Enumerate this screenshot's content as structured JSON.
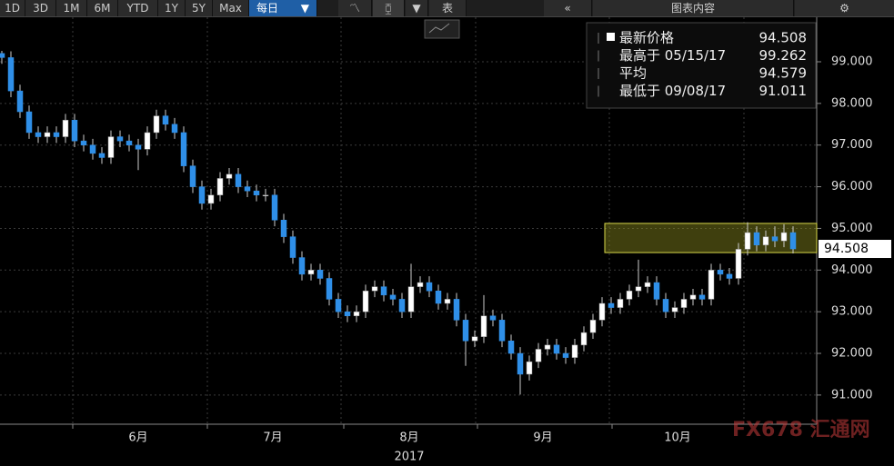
{
  "toolbar": {
    "ranges": [
      "1D",
      "3D",
      "1M",
      "6M",
      "YTD",
      "1Y",
      "5Y",
      "Max"
    ],
    "interval": "每日",
    "table": "表",
    "content": "图表内容"
  },
  "chart_data": {
    "type": "candlestick",
    "open": [
      99.2,
      99.1,
      98.3,
      97.8,
      97.3,
      97.2,
      97.3,
      97.2,
      97.6,
      97.1,
      97.0,
      96.8,
      96.7,
      97.2,
      97.1,
      97.0,
      96.9,
      97.3,
      97.7,
      97.5,
      97.3,
      96.5,
      96.0,
      95.6,
      95.8,
      96.2,
      96.3,
      96.0,
      95.9,
      95.8,
      95.8,
      95.2,
      94.8,
      94.3,
      93.9,
      94.0,
      93.8,
      93.3,
      93.0,
      92.9,
      93.0,
      93.5,
      93.6,
      93.4,
      93.3,
      93.0,
      93.6,
      93.7,
      93.5,
      93.2,
      93.3,
      92.8,
      92.3,
      92.4,
      92.9,
      92.8,
      92.3,
      92.0,
      91.5,
      91.8,
      92.1,
      92.2,
      92.0,
      91.9,
      92.2,
      92.5,
      92.8,
      93.2,
      93.1,
      93.3,
      93.5,
      93.6,
      93.7,
      93.3,
      93.0,
      93.1,
      93.3,
      93.4,
      93.3,
      94.0,
      93.9,
      93.8,
      94.5,
      94.9,
      94.6,
      94.8,
      94.7,
      94.9
    ],
    "high": [
      99.262,
      99.25,
      98.45,
      97.95,
      97.45,
      97.45,
      97.45,
      97.75,
      97.75,
      97.25,
      97.15,
      96.95,
      97.35,
      97.35,
      97.25,
      97.15,
      97.45,
      97.85,
      97.85,
      97.65,
      97.45,
      96.65,
      96.15,
      95.95,
      96.35,
      96.45,
      96.45,
      96.15,
      96.05,
      95.95,
      95.95,
      95.35,
      94.95,
      94.45,
      94.15,
      94.15,
      93.95,
      93.45,
      93.15,
      93.15,
      93.65,
      93.75,
      93.75,
      93.55,
      93.45,
      94.15,
      93.85,
      93.85,
      93.65,
      93.45,
      93.45,
      92.95,
      92.55,
      93.4,
      93.05,
      92.95,
      92.45,
      92.15,
      91.95,
      92.25,
      92.35,
      92.35,
      92.15,
      92.35,
      92.65,
      92.95,
      93.35,
      93.35,
      93.45,
      93.65,
      94.25,
      93.85,
      93.85,
      93.45,
      93.25,
      93.45,
      93.55,
      93.55,
      94.15,
      94.15,
      94.05,
      94.65,
      95.15,
      95.05,
      94.95,
      95.05,
      95.1,
      95.05
    ],
    "low": [
      98.95,
      98.15,
      97.65,
      97.15,
      97.05,
      97.05,
      97.05,
      97.05,
      96.95,
      96.85,
      96.65,
      96.55,
      96.55,
      96.95,
      96.85,
      96.4,
      96.75,
      97.15,
      97.35,
      97.15,
      96.35,
      95.85,
      95.45,
      95.45,
      95.65,
      96.05,
      95.85,
      95.75,
      95.65,
      95.65,
      95.05,
      94.65,
      94.15,
      93.75,
      93.75,
      93.65,
      93.15,
      92.85,
      92.75,
      92.75,
      92.85,
      93.35,
      93.25,
      93.15,
      92.85,
      92.85,
      93.45,
      93.35,
      93.05,
      93.05,
      92.65,
      91.7,
      92.15,
      92.25,
      92.65,
      92.15,
      91.85,
      91.011,
      91.35,
      91.65,
      91.95,
      91.85,
      91.75,
      91.75,
      92.05,
      92.35,
      92.65,
      92.95,
      92.95,
      93.15,
      93.35,
      93.45,
      93.15,
      92.85,
      92.85,
      92.95,
      93.15,
      93.15,
      93.15,
      93.75,
      93.65,
      93.65,
      94.35,
      94.45,
      94.45,
      94.55,
      94.55,
      94.4
    ],
    "close": [
      99.1,
      98.3,
      97.8,
      97.3,
      97.2,
      97.3,
      97.2,
      97.6,
      97.1,
      97.0,
      96.8,
      96.7,
      97.2,
      97.1,
      97.0,
      96.9,
      97.3,
      97.7,
      97.5,
      97.3,
      96.5,
      96.0,
      95.6,
      95.8,
      96.2,
      96.3,
      96.0,
      95.9,
      95.8,
      95.8,
      95.2,
      94.8,
      94.3,
      93.9,
      94.0,
      93.8,
      93.3,
      93.0,
      92.9,
      93.0,
      93.5,
      93.6,
      93.4,
      93.3,
      93.0,
      93.6,
      93.7,
      93.5,
      93.2,
      93.3,
      92.8,
      92.3,
      92.4,
      92.9,
      92.8,
      92.3,
      92.0,
      91.5,
      91.8,
      92.1,
      92.2,
      92.0,
      91.9,
      92.2,
      92.5,
      92.8,
      93.2,
      93.1,
      93.3,
      93.5,
      93.6,
      93.7,
      93.3,
      93.0,
      93.1,
      93.3,
      93.4,
      93.3,
      94.0,
      93.9,
      93.8,
      94.5,
      94.9,
      94.6,
      94.8,
      94.7,
      94.9,
      94.508
    ],
    "up_color": "#ffffff",
    "down_color": "#2f8fe8",
    "highlight_range": [
      94.42,
      95.12
    ],
    "ylim": [
      90.3,
      100.09
    ],
    "yticks": [
      {
        "value": 91,
        "label": "91.000"
      },
      {
        "value": 92,
        "label": "92.000"
      },
      {
        "value": 93,
        "label": "93.000"
      },
      {
        "value": 94,
        "label": "94.000"
      },
      {
        "value": 95,
        "label": "95.000"
      },
      {
        "value": 96,
        "label": "96.000"
      },
      {
        "value": 97,
        "label": "97.000"
      },
      {
        "value": 98,
        "label": "98.000"
      },
      {
        "value": 99,
        "label": "99.000"
      }
    ],
    "x_labels": [
      "6月",
      "7月",
      "8月",
      "9月",
      "10月"
    ],
    "x_year": "2017",
    "legend": [
      {
        "label": "最新价格",
        "value": 94.508
      },
      {
        "label": "最高于 05/15/17",
        "value": 99.262
      },
      {
        "label": "平均",
        "value": 94.579
      },
      {
        "label": "最低于 09/08/17",
        "value": 91.011
      }
    ],
    "watermark": "FX678 汇通网"
  }
}
